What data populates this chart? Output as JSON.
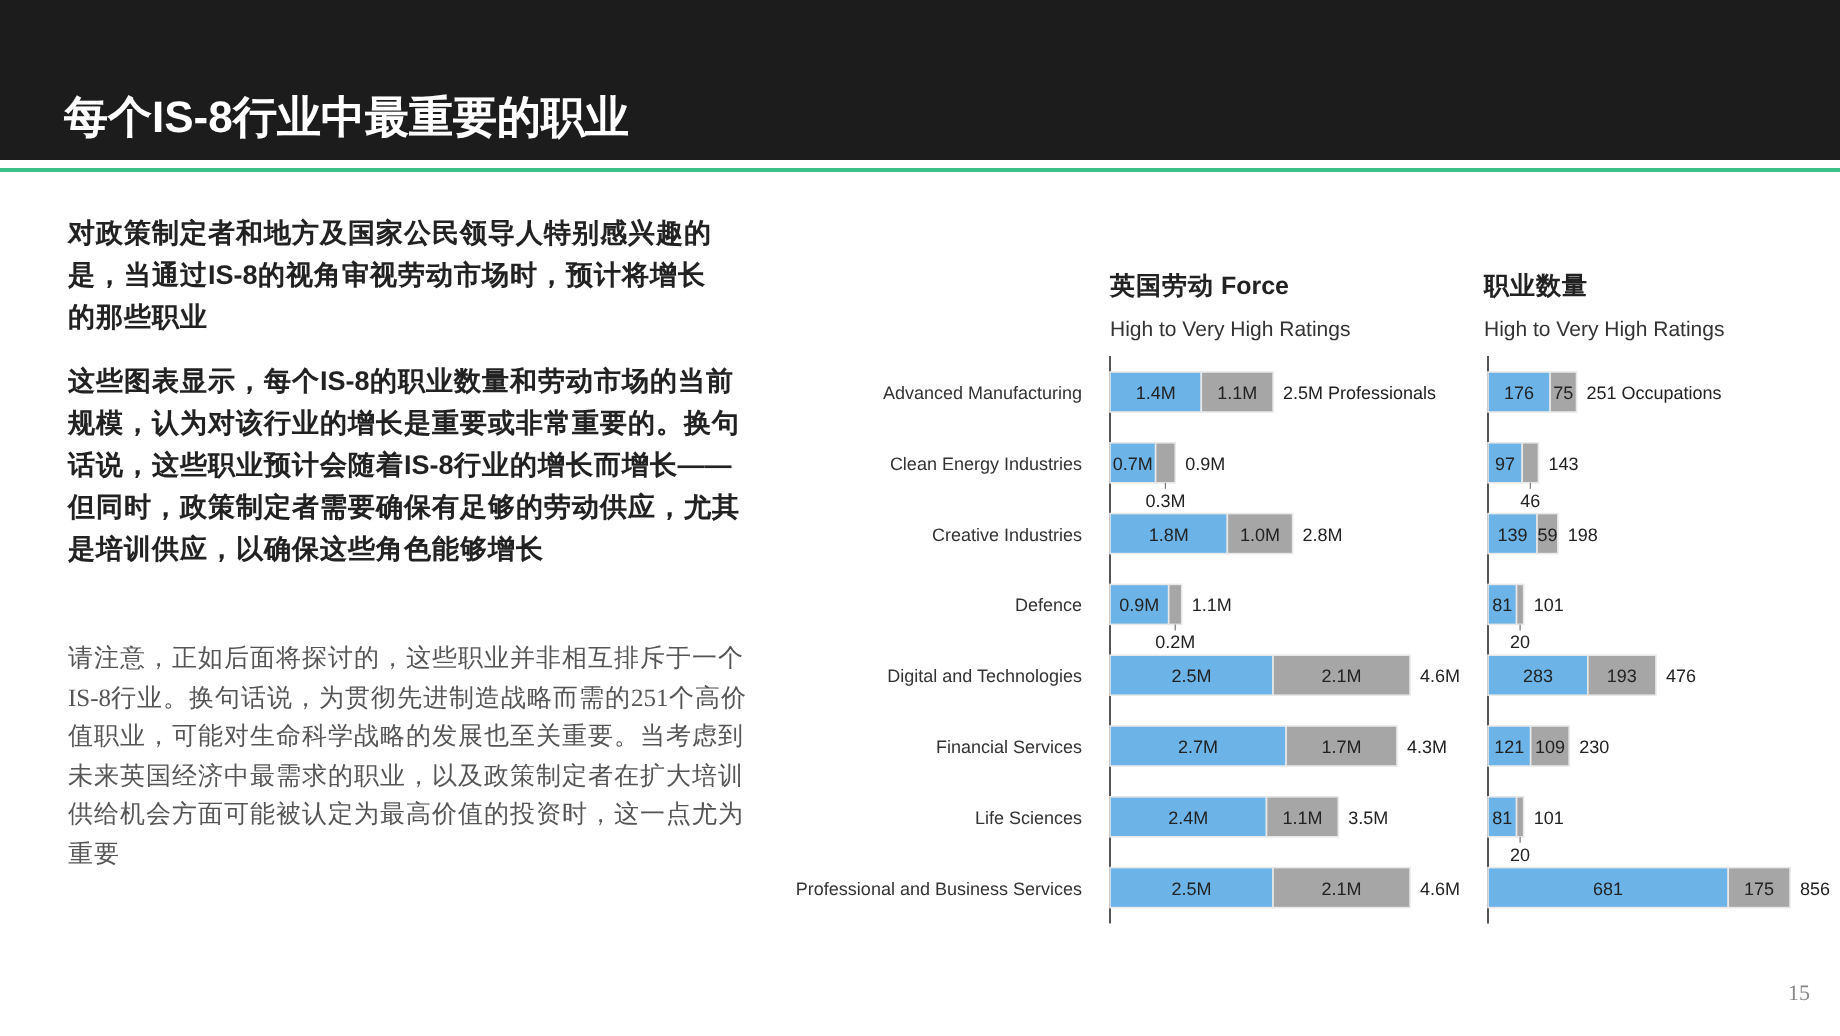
{
  "chart_data": [
    {
      "type": "bar",
      "orientation": "horizontal",
      "stacked": true,
      "title": "英国劳动 Force",
      "subtitle": "High to Very High Ratings",
      "annotations": [
        "每个IS-8行业中最重要的职业",
        "对政策制定者和地方及国家公民领导人特别感兴趣的是，当通过IS-8的视角审视劳动市场时，预计将增长的那些职业",
        "这些图表显示，每个IS-8的职业数量和劳动市场的当前规模，认为对该行业的增长是重要或非常重要的。换句话说，这些职业预计会随着IS-8行业的增长而增长——但同时，政策制定者需要确保有足够的劳动供应，尤其是培训供应，以确保这些角色能够增长",
        "请注意，正如后面将探讨的，这些职业并非相互排斥于一个IS-8行业。换句话说，为贯彻先进制造战略而需的251个高价值职业，可能对生命科学战略的发展也至关重要。当考虑到未来英国经济中最需求的职业，以及政策制定者在扩大培训供给机会方面可能被认定为最高价值的投资时，这一点尤为重要",
        "15"
      ],
      "categories": [
        "Advanced Manufacturing",
        "Clean Energy Industries",
        "Creative Industries",
        "Defence",
        "Digital and Technologies",
        "Financial Services",
        "Life Sciences",
        "Professional and Business Services"
      ],
      "series": [
        {
          "color": "#6cb4e8",
          "values": [
            1.4,
            0.7,
            1.8,
            0.9,
            2.5,
            2.7,
            2.4,
            2.5
          ],
          "value_labels": [
            "1.4M",
            "0.7M",
            "1.8M",
            "0.9M",
            "2.5M",
            "2.7M",
            "2.4M",
            "2.5M"
          ]
        },
        {
          "color": "#a6a6a6",
          "values": [
            1.1,
            0.3,
            1.0,
            0.2,
            2.1,
            1.7,
            1.1,
            2.1
          ],
          "value_labels": [
            "1.1M",
            "0.3M",
            "1.0M",
            "0.2M",
            "2.1M",
            "1.7M",
            "1.1M",
            "2.1M"
          ]
        }
      ],
      "totals": [
        "2.5M Professionals",
        "0.9M",
        "2.8M",
        "1.1M",
        "4.6M",
        "4.3M",
        "3.5M",
        "4.6M"
      ]
    },
    {
      "type": "bar",
      "orientation": "horizontal",
      "stacked": true,
      "title": "职业数量",
      "subtitle": "High to Very High Ratings",
      "categories": [
        null,
        null,
        null,
        null,
        null,
        null,
        null,
        null
      ],
      "series": [
        {
          "color": "#6cb4e8",
          "values": [
            176,
            97,
            139,
            81,
            283,
            121,
            81,
            681
          ],
          "value_labels": [
            "176",
            "97",
            "139",
            "81",
            "283",
            "121",
            "81",
            "681"
          ]
        },
        {
          "color": "#a6a6a6",
          "values": [
            75,
            46,
            59,
            20,
            193,
            109,
            20,
            175
          ],
          "value_labels": [
            "75",
            "46",
            "59",
            "20",
            "193",
            "109",
            "20",
            "175"
          ]
        }
      ],
      "totals": [
        "251 Occupations",
        "143",
        "198",
        "101",
        "476",
        "230",
        "101",
        "856"
      ]
    }
  ]
}
